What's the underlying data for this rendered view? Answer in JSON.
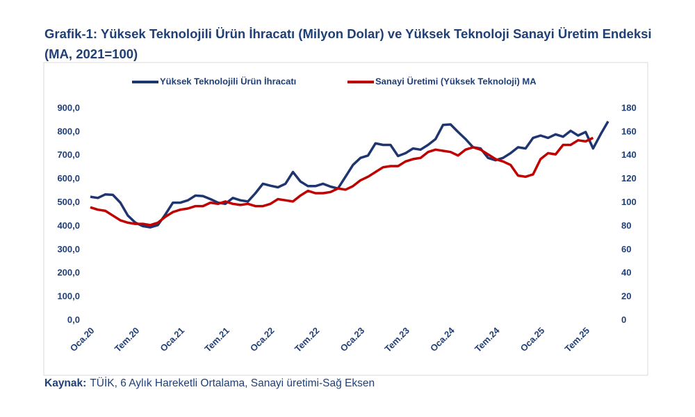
{
  "chart_data": {
    "type": "line",
    "title": "Grafik-1: Yüksek Teknolojili Ürün İhracatı (Milyon Dolar) ve Yüksek Teknoloji Sanayi Üretim Endeksi (MA, 2021=100)",
    "source_label": "Kaynak:",
    "source_text": "TÜİK, 6 Aylık Hareketli Ortalama, Sanayi üretimi-Sağ Eksen",
    "categories": [
      "Oca.20",
      null,
      null,
      null,
      null,
      null,
      "Tem.20",
      null,
      null,
      null,
      null,
      null,
      "Oca.21",
      null,
      null,
      null,
      null,
      null,
      "Tem.21",
      null,
      null,
      null,
      null,
      null,
      "Oca.22",
      null,
      null,
      null,
      null,
      null,
      "Tem.22",
      null,
      null,
      null,
      null,
      null,
      "Oca.23",
      null,
      null,
      null,
      null,
      null,
      "Tem.23",
      null,
      null,
      null,
      null,
      null,
      "Oca.24",
      null,
      null,
      null,
      null,
      null,
      "Tem.24",
      null,
      null,
      null,
      null,
      null,
      "Oca.25",
      null,
      null,
      null,
      null,
      null,
      "Tem.25",
      null,
      null,
      null
    ],
    "series": [
      {
        "name": "Yüksek Teknolojili Ürün İhracatı",
        "color": "#1f3570",
        "axis": "y",
        "values": [
          525,
          520,
          535,
          533,
          500,
          445,
          415,
          400,
          395,
          405,
          450,
          500,
          500,
          510,
          530,
          528,
          515,
          500,
          495,
          520,
          510,
          505,
          540,
          580,
          572,
          565,
          580,
          630,
          590,
          570,
          570,
          580,
          568,
          560,
          610,
          660,
          690,
          700,
          752,
          745,
          745,
          698,
          710,
          730,
          725,
          745,
          770,
          830,
          832,
          800,
          770,
          735,
          730,
          690,
          680,
          690,
          710,
          735,
          730,
          775,
          785,
          775,
          790,
          780,
          805,
          785,
          800,
          730,
          790,
          845
        ]
      },
      {
        "name": "Sanayi Üretimi (Yüksek Teknoloji) MA",
        "color": "#c00000",
        "axis": "y2",
        "values": [
          96,
          94,
          93,
          89,
          85,
          83,
          82,
          82,
          81,
          83,
          88,
          92,
          94,
          95,
          97,
          97,
          100,
          99,
          101,
          99,
          98,
          99,
          97,
          97,
          99,
          103,
          102,
          101,
          106,
          110,
          108,
          108,
          109,
          112,
          111,
          114,
          119,
          122,
          126,
          130,
          131,
          131,
          135,
          137,
          138,
          143,
          145,
          144,
          143,
          140,
          145,
          147,
          145,
          141,
          137,
          135,
          132,
          123,
          122,
          124,
          137,
          142,
          141,
          149,
          149,
          153,
          152,
          155,
          null,
          null
        ]
      }
    ],
    "ylim": [
      0,
      900
    ],
    "yticks": [
      {
        "value": 0,
        "label": "0,0"
      },
      {
        "value": 100,
        "label": "100,0"
      },
      {
        "value": 200,
        "label": "200,0"
      },
      {
        "value": 300,
        "label": "300,0"
      },
      {
        "value": 400,
        "label": "400,0"
      },
      {
        "value": 500,
        "label": "500,0"
      },
      {
        "value": 600,
        "label": "600,0"
      },
      {
        "value": 700,
        "label": "700,0"
      },
      {
        "value": 800,
        "label": "800,0"
      },
      {
        "value": 900,
        "label": "900,0"
      }
    ],
    "y2lim": [
      0,
      180
    ],
    "y2ticks": [
      0,
      20,
      40,
      60,
      80,
      100,
      120,
      140,
      160,
      180
    ],
    "grid": false,
    "legend": "top"
  }
}
